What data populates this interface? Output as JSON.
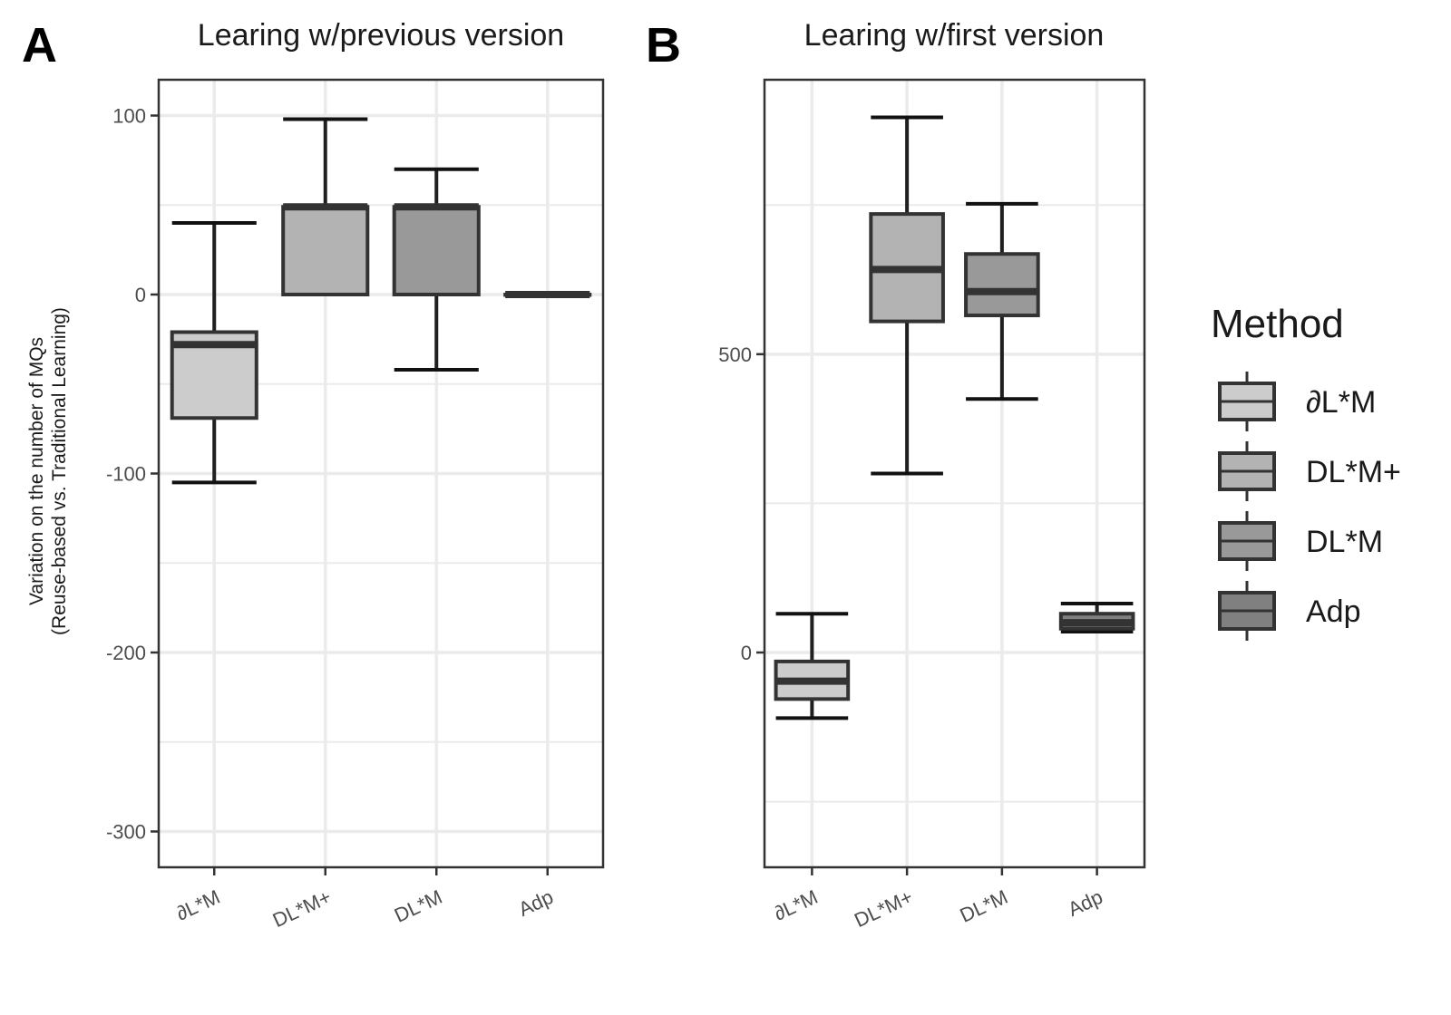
{
  "colors": {
    "box_fills": [
      "#cccccc",
      "#b3b3b3",
      "#999999",
      "#808080"
    ],
    "box_stroke": "#333333",
    "grid": "#ebebeb",
    "panel_border": "#333333"
  },
  "legend": {
    "title": "Method",
    "items": [
      "∂L*M",
      "DL*M+",
      "DL*M",
      "Adp"
    ]
  },
  "chart_data": [
    {
      "type": "box",
      "panel": "A",
      "title": "Learing w/previous version",
      "ylabel_line1": "Variation on the number of MQs",
      "ylabel_line2": "(Reuse-based vs. Traditional Learning)",
      "ylim": [
        -320,
        120
      ],
      "yticks": [
        100,
        0,
        -100,
        -200,
        -300
      ],
      "ytick_labels": [
        "100",
        "0",
        "-100",
        "-200",
        "-300"
      ],
      "categories": [
        "∂L*M",
        "DL*M+",
        "DL*M",
        "Adp"
      ],
      "boxes": [
        {
          "name": "∂L*M",
          "whisker_low": -105,
          "q1": -69,
          "median": -28,
          "q3": -21,
          "whisker_high": 40
        },
        {
          "name": "DL*M+",
          "whisker_low": 0,
          "q1": 0,
          "median": 49,
          "q3": 49,
          "whisker_high": 98
        },
        {
          "name": "DL*M",
          "whisker_low": -42,
          "q1": 0,
          "median": 49,
          "q3": 49,
          "whisker_high": 70
        },
        {
          "name": "Adp",
          "whisker_low": 0,
          "q1": 0,
          "median": 0,
          "q3": 0,
          "whisker_high": 0
        }
      ],
      "grid": true
    },
    {
      "type": "box",
      "panel": "B",
      "title": "Learing w/first version",
      "ylim": [
        -360,
        960
      ],
      "yticks": [
        500,
        0
      ],
      "ytick_labels": [
        "500",
        "0"
      ],
      "categories": [
        "∂L*M",
        "DL*M+",
        "DL*M",
        "Adp"
      ],
      "boxes": [
        {
          "name": "∂L*M",
          "whisker_low": -110,
          "q1": -78,
          "median": -48,
          "q3": -15,
          "whisker_high": 65
        },
        {
          "name": "DL*M+",
          "whisker_low": 300,
          "q1": 555,
          "median": 642,
          "q3": 735,
          "whisker_high": 897
        },
        {
          "name": "DL*M",
          "whisker_low": 425,
          "q1": 565,
          "median": 605,
          "q3": 668,
          "whisker_high": 752
        },
        {
          "name": "Adp",
          "whisker_low": 35,
          "q1": 40,
          "median": 50,
          "q3": 65,
          "whisker_high": 82
        }
      ],
      "grid": true
    }
  ]
}
